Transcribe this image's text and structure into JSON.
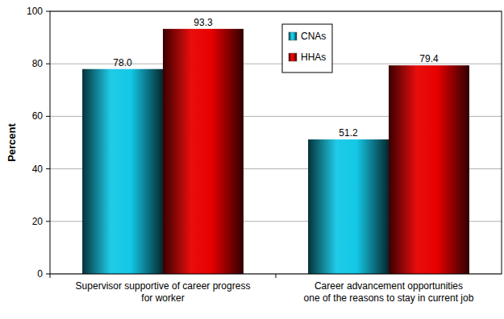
{
  "chart_data": {
    "type": "bar",
    "categories": [
      "Supervisor supportive of career progress\nfor worker",
      "Career advancement opportunities\none of the reasons to stay in current job"
    ],
    "series": [
      {
        "name": "CNAs",
        "color": "#14c8e6",
        "values": [
          78.0,
          51.2
        ],
        "value_labels": [
          "78.0",
          "51.2"
        ]
      },
      {
        "name": "HHAs",
        "color": "#e80000",
        "values": [
          93.3,
          79.4
        ],
        "value_labels": [
          "93.3",
          "79.4"
        ]
      }
    ],
    "y_label": "Percent",
    "ylim": [
      0,
      100
    ],
    "yticks": [
      0,
      20,
      40,
      60,
      80,
      100
    ],
    "grid": true,
    "legend": "top",
    "data_labels": true
  }
}
